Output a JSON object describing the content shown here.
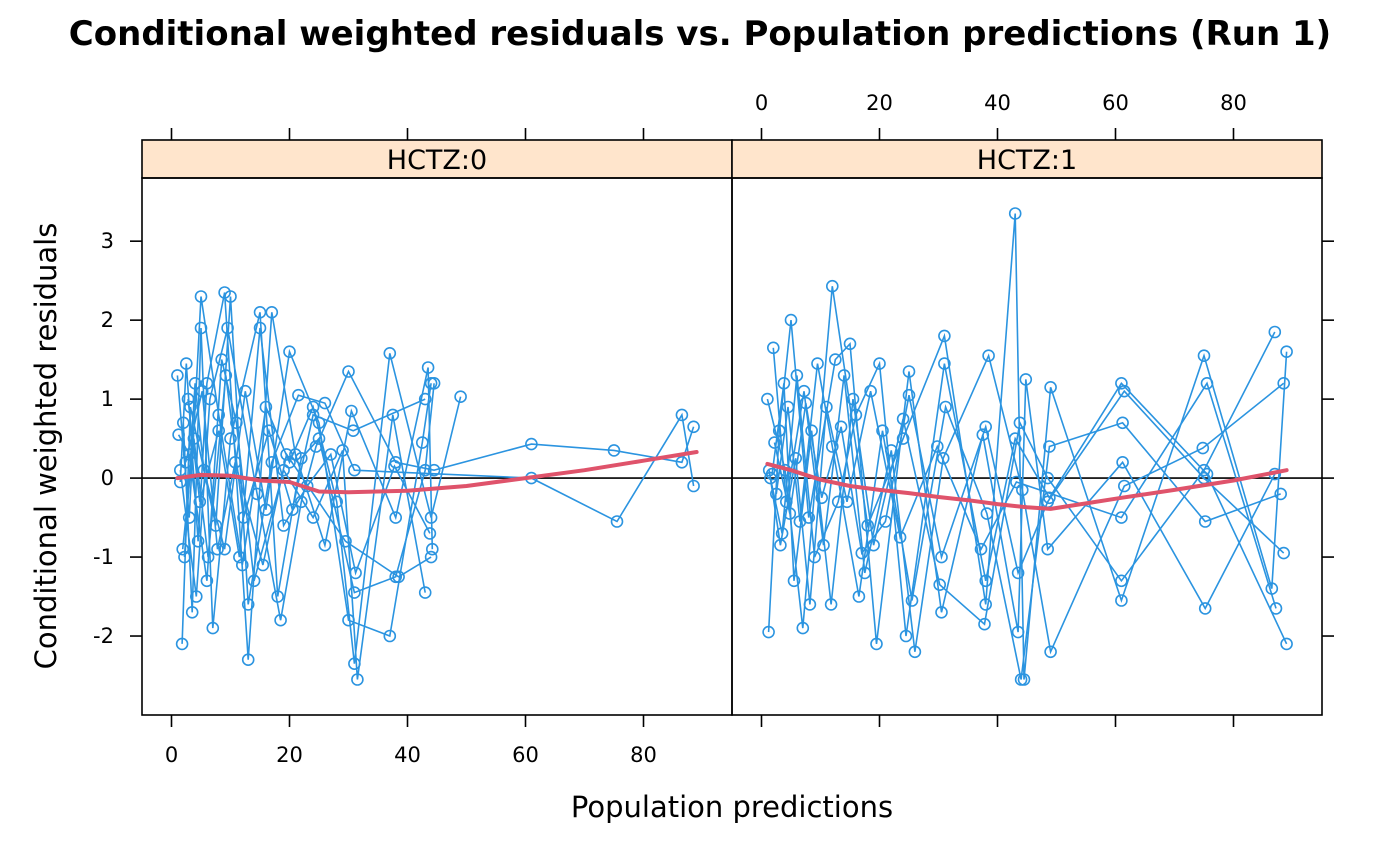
{
  "chart_data": {
    "type": "scatter",
    "title": "Conditional weighted residuals vs. Population predictions (Run 1)",
    "xlabel": "Population predictions",
    "ylabel": "Conditional weighted residuals",
    "xlim": [
      -5,
      95
    ],
    "ylim": [
      -3.0,
      3.8
    ],
    "x_ticks": [
      0,
      20,
      40,
      60,
      80
    ],
    "y_ticks": [
      -2,
      -1,
      0,
      1,
      2,
      3
    ],
    "reference_line_y": 0,
    "colors": {
      "points": "#2b94e0",
      "smooth": "#df536b",
      "strip": "#ffe5cc",
      "frame": "#000000"
    },
    "panels": [
      {
        "strip": "HCTZ:0",
        "series": [
          {
            "x": [
              1,
              3,
              5,
              8,
              12,
              16,
              20,
              24,
              28,
              31,
              37,
              44,
              49
            ],
            "y": [
              1.3,
              -0.5,
              2.3,
              0.8,
              -1.1,
              0.9,
              0.2,
              0.9,
              -0.3,
              -2.35,
              1.58,
              -0.5,
              1.03
            ]
          },
          {
            "x": [
              1.5,
              2.5,
              4.5,
              6,
              9,
              13,
              17,
              21,
              26,
              30.5,
              38,
              43.5,
              44.2
            ],
            "y": [
              -0.05,
              1.45,
              -0.8,
              1.2,
              2.35,
              -2.3,
              2.1,
              0.3,
              -0.85,
              0.85,
              -0.5,
              1.4,
              -0.9
            ]
          },
          {
            "x": [
              2,
              3.5,
              5,
              7,
              10,
              15,
              18,
              22,
              25,
              31,
              38,
              43,
              44.5
            ],
            "y": [
              0.7,
              -1.7,
              1.9,
              -1.9,
              0.5,
              2.1,
              -1.5,
              0.25,
              0.5,
              -1.45,
              -1.25,
              0.1,
              1.2
            ]
          },
          {
            "x": [
              1.2,
              3,
              6,
              8.5,
              11,
              14,
              19,
              24,
              29,
              31.5,
              37.5,
              43
            ],
            "y": [
              0.55,
              0.3,
              -1.3,
              1.5,
              0.7,
              -1.3,
              0.1,
              -0.5,
              0.35,
              -2.55,
              0.8,
              -1.45
            ]
          },
          {
            "x": [
              2.2,
              4,
              5.5,
              9,
              12.5,
              16,
              20,
              25,
              30,
              37,
              42.5,
              44
            ],
            "y": [
              -1.0,
              1.2,
              0.1,
              -0.9,
              1.1,
              -0.4,
              1.6,
              0.7,
              -1.8,
              -2.0,
              0.45,
              1.2
            ]
          },
          {
            "x": [
              1.8,
              3.2,
              7.5,
              10,
              13,
              17,
              21.5,
              26,
              31,
              61,
              75.5,
              86.5,
              88.5
            ],
            "y": [
              -2.1,
              0.9,
              -0.6,
              2.3,
              -1.6,
              0.2,
              1.05,
              0.95,
              0.1,
              0.0,
              -0.55,
              0.8,
              -0.1
            ]
          },
          {
            "x": [
              1.5,
              4.2,
              6.5,
              9.5,
              14.5,
              18.5,
              22,
              24.5,
              30,
              38,
              44.5,
              61,
              75,
              86.5,
              88.5
            ],
            "y": [
              0.1,
              -1.5,
              1.0,
              1.9,
              -0.2,
              -1.8,
              -0.3,
              0.4,
              1.35,
              0.2,
              0.1,
              0.43,
              0.35,
              0.2,
              0.65
            ]
          },
          {
            "x": [
              2.8,
              4.8,
              8,
              11.5,
              15,
              19,
              23,
              27,
              31.2,
              37.8,
              43.8
            ],
            "y": [
              1.0,
              -0.3,
              0.6,
              -1.0,
              1.9,
              -0.6,
              -0.1,
              0.3,
              -1.2,
              0.15,
              -0.7
            ]
          },
          {
            "x": [
              1.9,
              3.8,
              6.2,
              9.2,
              12.2,
              16.5,
              20.5,
              24,
              30.8,
              43
            ],
            "y": [
              -0.9,
              0.5,
              -1.0,
              1.3,
              -0.5,
              0.6,
              -0.4,
              0.8,
              0.6,
              1.0
            ]
          },
          {
            "x": [
              2.4,
              5.2,
              7.8,
              10.8,
              15.5,
              19.5,
              29.5,
              38.5,
              44
            ],
            "y": [
              0.2,
              1.1,
              -0.9,
              0.2,
              -1.1,
              0.3,
              -0.8,
              -1.25,
              -1.0
            ]
          }
        ],
        "smooth": {
          "x": [
            1,
            5,
            10,
            15,
            20,
            25,
            30,
            40,
            50,
            60,
            70,
            80,
            89
          ],
          "y": [
            0.0,
            0.04,
            0.03,
            -0.03,
            -0.05,
            -0.17,
            -0.18,
            -0.16,
            -0.1,
            0.0,
            0.1,
            0.22,
            0.33
          ]
        }
      },
      {
        "strip": "HCTZ:1",
        "series": [
          {
            "x": [
              1,
              4,
              7,
              12,
              18,
              24,
              31,
              38,
              43,
              44.5,
              49,
              61,
              75,
              86.5,
              89
            ],
            "y": [
              1.0,
              0.1,
              -1.9,
              2.43,
              -0.6,
              0.5,
              1.8,
              -1.6,
              3.35,
              -2.55,
              1.15,
              -1.55,
              1.55,
              -1.4,
              1.6
            ]
          },
          {
            "x": [
              1.2,
              3,
              5,
              8,
              12.5,
              15,
              19.5,
              25,
              30.5,
              37.5,
              43.5,
              44.8,
              48.5,
              61.2,
              75.2,
              87
            ],
            "y": [
              -1.95,
              0.6,
              2.0,
              -0.5,
              1.5,
              1.7,
              -2.1,
              1.35,
              -1.7,
              0.55,
              -1.95,
              1.25,
              -0.9,
              0.2,
              -1.65,
              0.05
            ]
          },
          {
            "x": [
              1.5,
              3.5,
              6,
              9,
              13,
              16,
              20,
              24.5,
              31,
              38,
              43,
              48.8,
              61,
              75.5,
              89
            ],
            "y": [
              0.0,
              -0.7,
              1.3,
              -1.0,
              -0.3,
              0.8,
              1.45,
              -2.0,
              1.45,
              -1.3,
              0.5,
              -0.25,
              1.2,
              0.05,
              -2.1
            ]
          },
          {
            "x": [
              2,
              4.2,
              7.2,
              10.5,
              14,
              17.5,
              22,
              26,
              30.8,
              38.5,
              44.2,
              49,
              61.5,
              74.8,
              88.5
            ],
            "y": [
              1.65,
              -0.3,
              1.1,
              -0.85,
              1.3,
              -1.2,
              0.35,
              -2.2,
              0.25,
              1.55,
              -0.15,
              -2.2,
              -0.1,
              0.38,
              1.2
            ]
          },
          {
            "x": [
              1.8,
              3.8,
              5.5,
              8.5,
              11.8,
              15.5,
              19,
              24,
              30.2,
              37.8,
              43.8,
              48.5,
              61,
              75,
              87
            ],
            "y": [
              0.05,
              1.2,
              -1.3,
              0.6,
              -1.6,
              1.0,
              -0.85,
              0.75,
              -1.35,
              -1.85,
              0.7,
              0.0,
              -1.3,
              0.1,
              1.85
            ]
          },
          {
            "x": [
              2.5,
              4.5,
              6.5,
              9.5,
              12,
              16.5,
              20.5,
              25.5,
              31.2,
              38.2,
              44,
              48.8,
              61.2,
              75.2,
              88
            ],
            "y": [
              -0.2,
              0.9,
              -0.55,
              1.45,
              0.4,
              -1.5,
              0.6,
              -1.55,
              0.9,
              -0.45,
              -2.55,
              0.4,
              0.7,
              -0.55,
              -0.2
            ]
          },
          {
            "x": [
              1.3,
              3.2,
              5.8,
              8.2,
              11,
              14.5,
              18.5,
              23.5,
              29.8,
              37.2,
              43.2,
              61,
              75.5,
              87.2
            ],
            "y": [
              0.1,
              -0.85,
              0.25,
              -1.6,
              0.9,
              -0.3,
              1.1,
              -0.75,
              0.4,
              -0.9,
              -0.05,
              -0.5,
              1.2,
              -1.65
            ]
          },
          {
            "x": [
              2.2,
              4.8,
              7.5,
              10.2,
              13.5,
              17,
              21,
              25,
              30.5,
              38,
              43.5,
              48.5,
              61.5,
              75,
              88.5
            ],
            "y": [
              0.45,
              -0.45,
              0.95,
              -0.25,
              0.65,
              -0.95,
              -0.55,
              1.05,
              -1.0,
              0.65,
              -1.2,
              -0.3,
              1.1,
              0.0,
              -0.95
            ]
          }
        ],
        "smooth": {
          "x": [
            1,
            5,
            10,
            15,
            20,
            25,
            30,
            35,
            40,
            45,
            49,
            55,
            61,
            70,
            80,
            89
          ],
          "y": [
            0.18,
            0.1,
            -0.02,
            -0.1,
            -0.15,
            -0.19,
            -0.24,
            -0.28,
            -0.33,
            -0.37,
            -0.39,
            -0.32,
            -0.25,
            -0.15,
            -0.03,
            0.1
          ]
        }
      }
    ]
  }
}
